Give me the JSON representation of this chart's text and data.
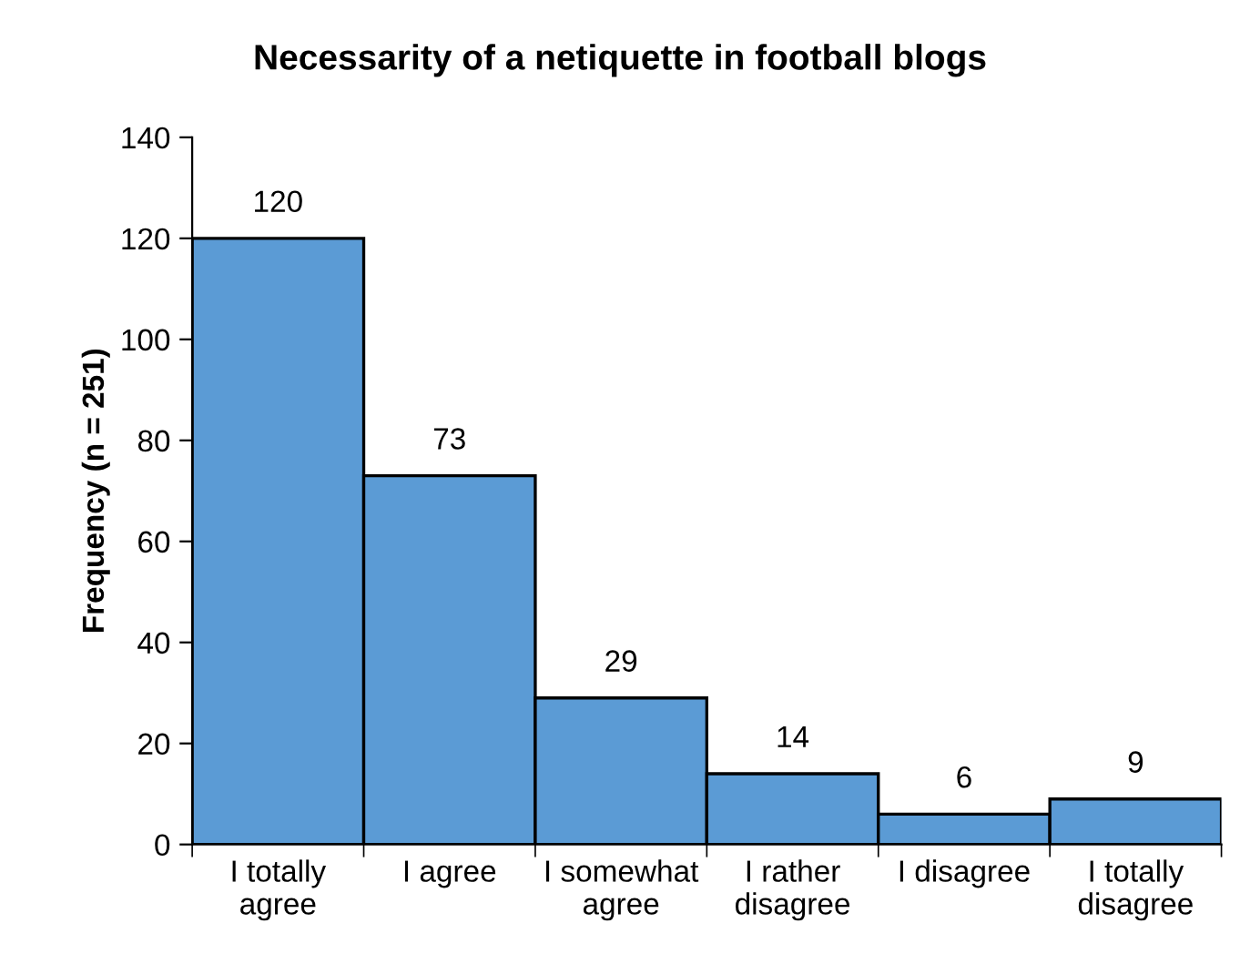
{
  "chart_data": {
    "type": "bar",
    "title": "Necessarity of a netiquette in football blogs",
    "ylabel": "Frequency (n = 251)",
    "categories": [
      "I totally\nagree",
      "I agree",
      "I somewhat\nagree",
      "I rather\ndisagree",
      "I disagree",
      "I totally\ndisagree"
    ],
    "values": [
      120,
      73,
      29,
      14,
      6,
      9
    ],
    "color": "#5b9bd5",
    "ylim": [
      0,
      140
    ],
    "yticks": [
      0,
      20,
      40,
      60,
      80,
      100,
      120,
      140
    ],
    "grid": false,
    "data_labels": true
  }
}
